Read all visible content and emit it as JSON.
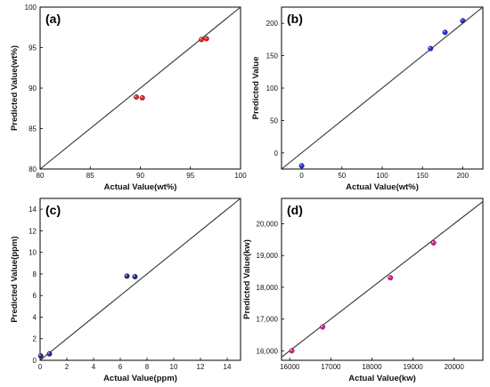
{
  "chart_data": [
    {
      "type": "scatter",
      "panel_label": "(a)",
      "xlabel": "Actual Value(wt%)",
      "ylabel": "Predicted Value(wt%)",
      "xlim": [
        80,
        100
      ],
      "ylim": [
        80,
        100
      ],
      "xticks": [
        80,
        85,
        90,
        95,
        100
      ],
      "yticks": [
        80,
        85,
        90,
        95,
        100
      ],
      "tick_labels_x": [
        "80",
        "85",
        "90",
        "95",
        "100"
      ],
      "tick_labels_y": [
        "80",
        "85",
        "90",
        "95",
        "100"
      ],
      "reference_line": "y = x",
      "marker_color": "#e8231f",
      "points": [
        {
          "x": 89.6,
          "y": 88.9
        },
        {
          "x": 90.2,
          "y": 88.8
        },
        {
          "x": 96.1,
          "y": 96.0
        },
        {
          "x": 96.6,
          "y": 96.1
        }
      ]
    },
    {
      "type": "scatter",
      "panel_label": "(b)",
      "xlabel": "Actual Value(wt%)",
      "ylabel": "Predicted Value",
      "xlim": [
        -25,
        225
      ],
      "ylim": [
        -25,
        225
      ],
      "xticks": [
        0,
        50,
        100,
        150,
        200
      ],
      "yticks": [
        0,
        50,
        100,
        150,
        200
      ],
      "tick_labels_x": [
        "0",
        "50",
        "100",
        "150",
        "200"
      ],
      "tick_labels_y": [
        "0",
        "50",
        "100",
        "150",
        "200"
      ],
      "reference_line": "y = x",
      "marker_color": "#1f2bd6",
      "points": [
        {
          "x": 0,
          "y": -20
        },
        {
          "x": 160,
          "y": 161
        },
        {
          "x": 178,
          "y": 186
        },
        {
          "x": 200,
          "y": 204
        }
      ]
    },
    {
      "type": "scatter",
      "panel_label": "(c)",
      "xlabel": "Actual Value(ppm)",
      "ylabel": "Predicted Value(ppm)",
      "xlim": [
        0,
        15
      ],
      "ylim": [
        0,
        15
      ],
      "xticks": [
        0,
        2,
        4,
        6,
        8,
        10,
        12,
        14
      ],
      "yticks": [
        0,
        2,
        4,
        6,
        8,
        10,
        12,
        14
      ],
      "tick_labels_x": [
        "0",
        "2",
        "4",
        "6",
        "8",
        "10",
        "12",
        "14"
      ],
      "tick_labels_y": [
        "0",
        "2",
        "4",
        "6",
        "8",
        "10",
        "12",
        "14"
      ],
      "reference_line": "y = x",
      "marker_color": "#1f2a8a",
      "points": [
        {
          "x": 0.05,
          "y": 0.4
        },
        {
          "x": 0.7,
          "y": 0.6
        },
        {
          "x": 6.5,
          "y": 7.8
        },
        {
          "x": 7.1,
          "y": 7.75
        }
      ]
    },
    {
      "type": "scatter",
      "panel_label": "(d)",
      "xlabel": "Actual Value(kw)",
      "ylabel": "Predicted Value(kw)",
      "xlim": [
        15800,
        20700
      ],
      "ylim": [
        15700,
        20800
      ],
      "xticks": [
        16000,
        17000,
        18000,
        19000,
        20000
      ],
      "yticks": [
        16000,
        17000,
        18000,
        19000,
        20000
      ],
      "tick_labels_x": [
        "16000",
        "17000",
        "18000",
        "19000",
        "20000"
      ],
      "tick_labels_y": [
        "16,000",
        "17,000",
        "18,000",
        "19,000",
        "20,000"
      ],
      "reference_line": "y = x",
      "marker_color": "#e8188c",
      "points": [
        {
          "x": 16050,
          "y": 16000
        },
        {
          "x": 16800,
          "y": 16750
        },
        {
          "x": 18450,
          "y": 18300
        },
        {
          "x": 19500,
          "y": 19400
        }
      ]
    }
  ]
}
